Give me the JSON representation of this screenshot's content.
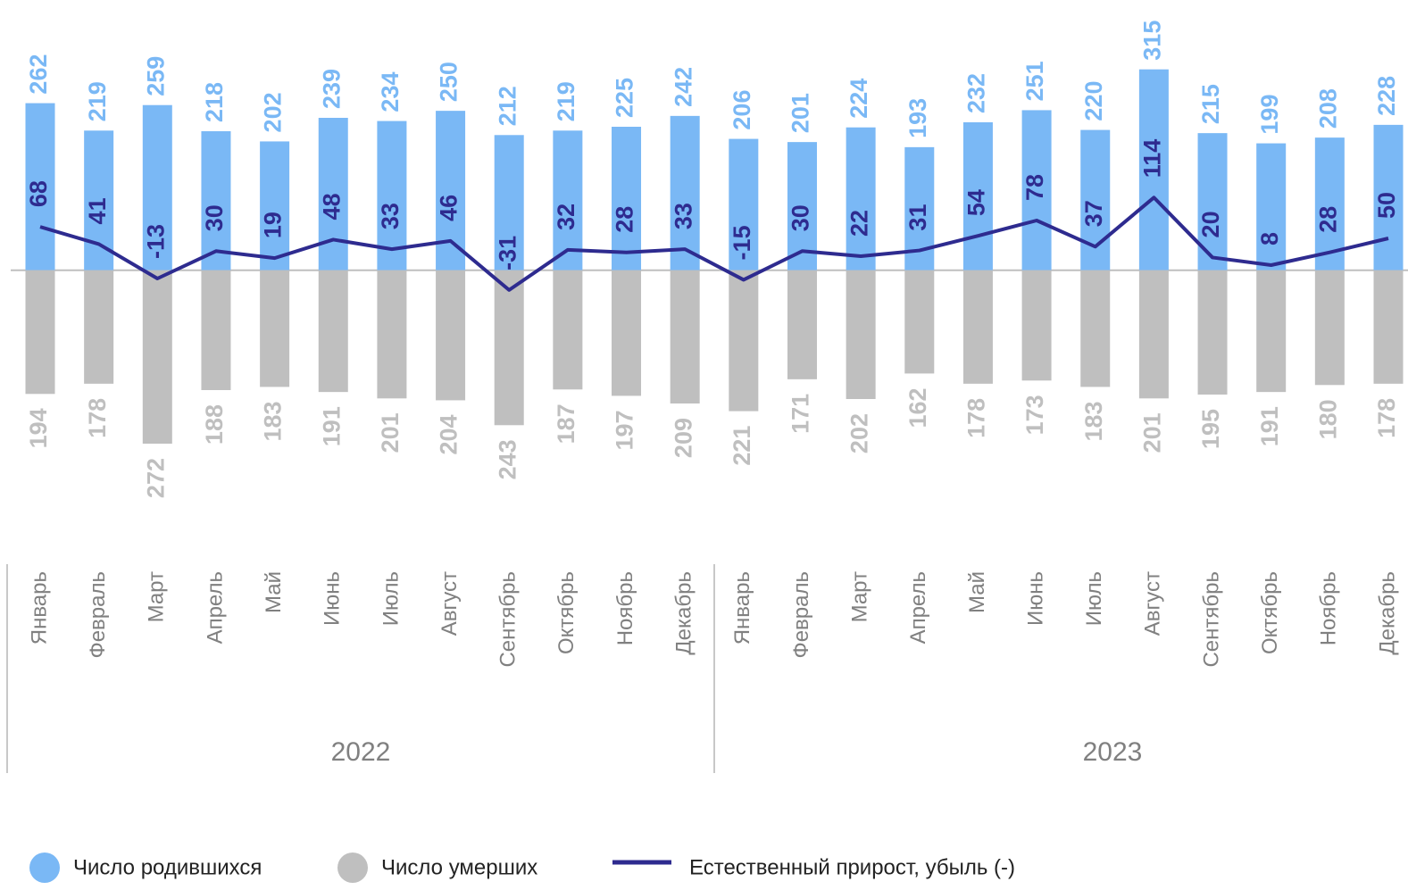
{
  "chart_data": {
    "type": "bar",
    "categories": [
      "Январь",
      "Февраль",
      "Март",
      "Апрель",
      "Май",
      "Июнь",
      "Июль",
      "Август",
      "Сентябрь",
      "Октябрь",
      "Ноябрь",
      "Декабрь",
      "Январь",
      "Февраль",
      "Март",
      "Апрель",
      "Май",
      "Июнь",
      "Июль",
      "Август",
      "Сентябрь",
      "Октябрь",
      "Ноябрь",
      "Декабрь"
    ],
    "x_groups": [
      "2022",
      "2023"
    ],
    "series": [
      {
        "name": "Число родившихся",
        "type": "bar",
        "color": "#7ab8f5",
        "values": [
          262,
          219,
          259,
          218,
          202,
          239,
          234,
          250,
          212,
          219,
          225,
          242,
          206,
          201,
          224,
          193,
          232,
          251,
          220,
          315,
          215,
          199,
          208,
          228
        ]
      },
      {
        "name": "Число умерших",
        "type": "bar",
        "color": "#bfbfbf",
        "values": [
          -194,
          -178,
          -272,
          -188,
          -183,
          -191,
          -201,
          -204,
          -243,
          -187,
          -197,
          -209,
          -221,
          -171,
          -202,
          -162,
          -178,
          -173,
          -183,
          -201,
          -195,
          -191,
          -180,
          -178
        ],
        "value_labels": [
          "194",
          "178",
          "272",
          "188",
          "183",
          "191",
          "201",
          "204",
          "243",
          "187",
          "197",
          "209",
          "221",
          "171",
          "202",
          "162",
          "178",
          "173",
          "183",
          "201",
          "195",
          "191",
          "180",
          "178"
        ]
      },
      {
        "name": "Естественный прирост, убыль (-)",
        "type": "line",
        "color": "#2e2b8f",
        "values": [
          68,
          41,
          -13,
          30,
          19,
          48,
          33,
          46,
          -31,
          32,
          28,
          33,
          -15,
          30,
          22,
          31,
          54,
          78,
          37,
          114,
          20,
          8,
          28,
          50
        ]
      }
    ],
    "ylim": [
      -300,
      330
    ]
  }
}
